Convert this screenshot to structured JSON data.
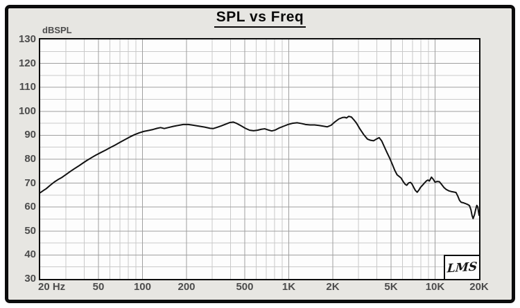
{
  "window": {
    "title": "SPL vs Freq"
  },
  "logo": {
    "text": "LMS"
  },
  "colors": {
    "panel_bg": "#e7e6e2",
    "plot_bg": "#fdfdfd",
    "grid_minor": "#c9c9c9",
    "grid_major": "#9f9f9f",
    "frame": "#0c0c0c",
    "tick_text": "#4c4c4c",
    "title_text": "#0a0a0a",
    "curve": "#111111"
  },
  "chart_data": {
    "type": "line",
    "title": "SPL vs Freq",
    "ylabel": "dBSPL",
    "xlabel_unit": "Hz",
    "x_scale": "log",
    "xlim": [
      20,
      20000
    ],
    "ylim": [
      30,
      130
    ],
    "y_major_step": 10,
    "y_minor_step": 5,
    "grid": "both",
    "legend": "none",
    "x_ticks": [
      {
        "f": 20,
        "label": "20 Hz",
        "align": "left"
      },
      {
        "f": 50,
        "label": "50"
      },
      {
        "f": 100,
        "label": "100"
      },
      {
        "f": 200,
        "label": "200"
      },
      {
        "f": 500,
        "label": "500"
      },
      {
        "f": 1000,
        "label": "1K"
      },
      {
        "f": 2000,
        "label": "2K"
      },
      {
        "f": 5000,
        "label": "5K"
      },
      {
        "f": 10000,
        "label": "10K"
      },
      {
        "f": 20000,
        "label": "20K"
      }
    ],
    "y_ticks": [
      130,
      120,
      110,
      100,
      90,
      80,
      70,
      60,
      50,
      40,
      30
    ],
    "x_major_gridlines": [
      50,
      100,
      200,
      500,
      1000,
      2000,
      5000,
      10000
    ],
    "x_minor_gridlines": [
      30,
      40,
      60,
      70,
      80,
      90,
      300,
      400,
      600,
      700,
      800,
      900,
      3000,
      4000,
      6000,
      7000,
      8000,
      9000
    ],
    "series": [
      {
        "name": "SPL response",
        "color": "#111111",
        "points": [
          [
            20,
            66.0
          ],
          [
            21,
            66.9
          ],
          [
            22,
            67.7
          ],
          [
            23.5,
            69.2
          ],
          [
            25,
            70.5
          ],
          [
            26.5,
            71.5
          ],
          [
            28,
            72.3
          ],
          [
            30,
            73.6
          ],
          [
            32,
            74.8
          ],
          [
            34,
            75.9
          ],
          [
            36.5,
            77.1
          ],
          [
            39,
            78.3
          ],
          [
            42,
            79.6
          ],
          [
            45,
            80.7
          ],
          [
            48,
            81.7
          ],
          [
            52,
            82.8
          ],
          [
            56,
            83.8
          ],
          [
            60,
            84.8
          ],
          [
            65,
            85.9
          ],
          [
            70,
            87.0
          ],
          [
            76,
            88.2
          ],
          [
            82,
            89.3
          ],
          [
            88,
            90.2
          ],
          [
            95,
            91.0
          ],
          [
            102,
            91.6
          ],
          [
            110,
            92.0
          ],
          [
            118,
            92.4
          ],
          [
            126,
            92.9
          ],
          [
            133,
            93.2
          ],
          [
            141,
            92.8
          ],
          [
            150,
            93.2
          ],
          [
            162,
            93.7
          ],
          [
            175,
            94.1
          ],
          [
            190,
            94.5
          ],
          [
            206,
            94.5
          ],
          [
            222,
            94.2
          ],
          [
            243,
            93.8
          ],
          [
            266,
            93.4
          ],
          [
            290,
            92.9
          ],
          [
            305,
            92.8
          ],
          [
            320,
            93.2
          ],
          [
            345,
            93.9
          ],
          [
            370,
            94.6
          ],
          [
            395,
            95.3
          ],
          [
            418,
            95.5
          ],
          [
            442,
            94.9
          ],
          [
            470,
            94.0
          ],
          [
            505,
            92.9
          ],
          [
            540,
            92.1
          ],
          [
            575,
            91.9
          ],
          [
            612,
            92.1
          ],
          [
            650,
            92.5
          ],
          [
            685,
            92.7
          ],
          [
            725,
            92.2
          ],
          [
            765,
            91.8
          ],
          [
            810,
            92.2
          ],
          [
            865,
            93.1
          ],
          [
            925,
            93.8
          ],
          [
            990,
            94.5
          ],
          [
            1060,
            95.0
          ],
          [
            1140,
            95.2
          ],
          [
            1220,
            94.9
          ],
          [
            1300,
            94.5
          ],
          [
            1400,
            94.3
          ],
          [
            1500,
            94.3
          ],
          [
            1610,
            94.1
          ],
          [
            1720,
            93.8
          ],
          [
            1830,
            93.5
          ],
          [
            1950,
            94.2
          ],
          [
            2070,
            95.6
          ],
          [
            2200,
            96.8
          ],
          [
            2330,
            97.4
          ],
          [
            2420,
            97.5
          ],
          [
            2480,
            97.2
          ],
          [
            2570,
            97.9
          ],
          [
            2680,
            97.6
          ],
          [
            2790,
            96.4
          ],
          [
            2900,
            95.1
          ],
          [
            3060,
            92.7
          ],
          [
            3250,
            90.3
          ],
          [
            3450,
            88.4
          ],
          [
            3620,
            87.9
          ],
          [
            3800,
            87.7
          ],
          [
            3970,
            88.4
          ],
          [
            4150,
            89.0
          ],
          [
            4320,
            87.6
          ],
          [
            4500,
            85.2
          ],
          [
            4700,
            82.7
          ],
          [
            4900,
            80.4
          ],
          [
            5100,
            77.9
          ],
          [
            5300,
            75.4
          ],
          [
            5500,
            73.5
          ],
          [
            5680,
            72.8
          ],
          [
            5850,
            72.2
          ],
          [
            6050,
            70.7
          ],
          [
            6250,
            69.5
          ],
          [
            6400,
            69.1
          ],
          [
            6600,
            70.1
          ],
          [
            6800,
            70.3
          ],
          [
            6950,
            69.7
          ],
          [
            7150,
            68.2
          ],
          [
            7350,
            66.9
          ],
          [
            7550,
            66.2
          ],
          [
            7750,
            67.1
          ],
          [
            7950,
            68.2
          ],
          [
            8200,
            69.1
          ],
          [
            8500,
            70.2
          ],
          [
            8750,
            71.0
          ],
          [
            8950,
            71.3
          ],
          [
            9150,
            70.9
          ],
          [
            9450,
            72.5
          ],
          [
            9700,
            71.7
          ],
          [
            10000,
            70.4
          ],
          [
            10300,
            70.7
          ],
          [
            10700,
            70.6
          ],
          [
            11100,
            69.4
          ],
          [
            11500,
            68.2
          ],
          [
            11900,
            67.4
          ],
          [
            12400,
            66.8
          ],
          [
            12900,
            66.5
          ],
          [
            13400,
            66.3
          ],
          [
            13900,
            66.1
          ],
          [
            14300,
            64.6
          ],
          [
            14700,
            62.8
          ],
          [
            15100,
            62.0
          ],
          [
            15600,
            61.8
          ],
          [
            16100,
            61.5
          ],
          [
            16700,
            61.1
          ],
          [
            17200,
            60.6
          ],
          [
            17600,
            58.8
          ],
          [
            17900,
            56.5
          ],
          [
            18200,
            55.2
          ],
          [
            18600,
            56.8
          ],
          [
            19000,
            59.3
          ],
          [
            19300,
            60.7
          ],
          [
            19600,
            60.0
          ],
          [
            19800,
            58.2
          ],
          [
            20000,
            56.6
          ]
        ]
      }
    ]
  }
}
